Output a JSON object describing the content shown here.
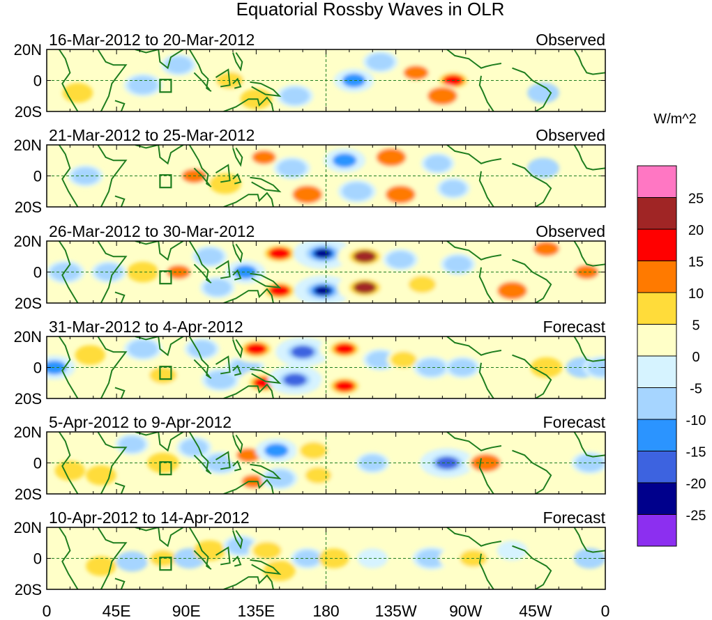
{
  "chart_data": {
    "type": "heatmap",
    "title": "Equatorial Rossby Waves in OLR",
    "units": "W/m^2",
    "x_ticks": [
      "0",
      "45E",
      "90E",
      "135E",
      "180",
      "135W",
      "90W",
      "45W",
      "0"
    ],
    "y_ticks": [
      "20N",
      "0",
      "20S"
    ],
    "x_range_deg": [
      0,
      360
    ],
    "y_range_deg": [
      -20,
      20
    ],
    "colorbar": {
      "labels": [
        "25",
        "20",
        "15",
        "10",
        "5",
        "0",
        "-5",
        "-10",
        "-15",
        "-20",
        "-25"
      ],
      "colors": [
        "#ff77c3",
        "#a02525",
        "#ff0000",
        "#ff7a00",
        "#ffdc3a",
        "#ffffc8",
        "#d6f3ff",
        "#a6d5ff",
        "#2b94ff",
        "#3d63e0",
        "#00008c",
        "#8c2ff0"
      ]
    },
    "panels": [
      {
        "period": "16-Mar-2012 to 20-Mar-2012",
        "label": "Observed",
        "blobs": [
          {
            "lon": 20,
            "lat": -8,
            "value": 5
          },
          {
            "lon": 45,
            "lat": 5,
            "value": 4
          },
          {
            "lon": 62,
            "lat": -3,
            "value": -10
          },
          {
            "lon": 85,
            "lat": 10,
            "value": -8
          },
          {
            "lon": 118,
            "lat": 0,
            "value": 8
          },
          {
            "lon": 135,
            "lat": -12,
            "value": 6
          },
          {
            "lon": 160,
            "lat": -10,
            "value": -9
          },
          {
            "lon": 198,
            "lat": 0,
            "value": -11
          },
          {
            "lon": 215,
            "lat": 12,
            "value": -8
          },
          {
            "lon": 238,
            "lat": 5,
            "value": 13
          },
          {
            "lon": 262,
            "lat": 0,
            "value": 17
          },
          {
            "lon": 255,
            "lat": -10,
            "value": 10
          },
          {
            "lon": 300,
            "lat": 5,
            "value": 4
          },
          {
            "lon": 320,
            "lat": -8,
            "value": -6
          },
          {
            "lon": 350,
            "lat": 3,
            "value": 4
          }
        ]
      },
      {
        "period": "21-Mar-2012 to 25-Mar-2012",
        "label": "Observed",
        "blobs": [
          {
            "lon": 25,
            "lat": 0,
            "value": -8
          },
          {
            "lon": 60,
            "lat": 8,
            "value": 4
          },
          {
            "lon": 95,
            "lat": 0,
            "value": 13
          },
          {
            "lon": 115,
            "lat": -5,
            "value": 6
          },
          {
            "lon": 140,
            "lat": 12,
            "value": 12
          },
          {
            "lon": 158,
            "lat": 5,
            "value": -9
          },
          {
            "lon": 168,
            "lat": -12,
            "value": 10
          },
          {
            "lon": 192,
            "lat": 10,
            "value": -12
          },
          {
            "lon": 200,
            "lat": -10,
            "value": -10
          },
          {
            "lon": 222,
            "lat": 12,
            "value": 10
          },
          {
            "lon": 228,
            "lat": -12,
            "value": 10
          },
          {
            "lon": 252,
            "lat": 8,
            "value": -7
          },
          {
            "lon": 262,
            "lat": -8,
            "value": -7
          },
          {
            "lon": 285,
            "lat": 0,
            "value": 4
          },
          {
            "lon": 320,
            "lat": 5,
            "value": -6
          },
          {
            "lon": 345,
            "lat": 0,
            "value": 4
          }
        ]
      },
      {
        "period": "26-Mar-2012 to 30-Mar-2012",
        "label": "Observed",
        "blobs": [
          {
            "lon": 12,
            "lat": 0,
            "value": -10
          },
          {
            "lon": 40,
            "lat": 0,
            "value": -8
          },
          {
            "lon": 62,
            "lat": 0,
            "value": 6
          },
          {
            "lon": 85,
            "lat": 0,
            "value": 12
          },
          {
            "lon": 105,
            "lat": 10,
            "value": -8
          },
          {
            "lon": 110,
            "lat": -10,
            "value": -8
          },
          {
            "lon": 128,
            "lat": 0,
            "value": -11
          },
          {
            "lon": 150,
            "lat": 12,
            "value": 19
          },
          {
            "lon": 150,
            "lat": -12,
            "value": 18
          },
          {
            "lon": 178,
            "lat": 12,
            "value": -23
          },
          {
            "lon": 178,
            "lat": -12,
            "value": -22
          },
          {
            "lon": 205,
            "lat": 10,
            "value": 20
          },
          {
            "lon": 205,
            "lat": -10,
            "value": 20
          },
          {
            "lon": 228,
            "lat": 8,
            "value": -8
          },
          {
            "lon": 242,
            "lat": -8,
            "value": 8
          },
          {
            "lon": 265,
            "lat": 5,
            "value": -8
          },
          {
            "lon": 300,
            "lat": -12,
            "value": 10
          },
          {
            "lon": 322,
            "lat": 15,
            "value": 14
          },
          {
            "lon": 348,
            "lat": 0,
            "value": 12
          }
        ]
      },
      {
        "period": "31-Mar-2012 to 4-Apr-2012",
        "label": "Forecast",
        "blobs": [
          {
            "lon": 5,
            "lat": 0,
            "value": -12
          },
          {
            "lon": 28,
            "lat": 8,
            "value": 5
          },
          {
            "lon": 62,
            "lat": 12,
            "value": -10
          },
          {
            "lon": 75,
            "lat": -5,
            "value": 8
          },
          {
            "lon": 100,
            "lat": 12,
            "value": -8
          },
          {
            "lon": 112,
            "lat": -8,
            "value": -10
          },
          {
            "lon": 128,
            "lat": 0,
            "value": -10
          },
          {
            "lon": 135,
            "lat": 12,
            "value": 18
          },
          {
            "lon": 140,
            "lat": -10,
            "value": 18
          },
          {
            "lon": 165,
            "lat": 10,
            "value": -20
          },
          {
            "lon": 160,
            "lat": -8,
            "value": -20
          },
          {
            "lon": 192,
            "lat": 12,
            "value": 17
          },
          {
            "lon": 192,
            "lat": -12,
            "value": 17
          },
          {
            "lon": 215,
            "lat": 5,
            "value": -8
          },
          {
            "lon": 230,
            "lat": 5,
            "value": 7
          },
          {
            "lon": 248,
            "lat": 0,
            "value": -9
          },
          {
            "lon": 268,
            "lat": 0,
            "value": -8
          },
          {
            "lon": 300,
            "lat": 0,
            "value": 4
          },
          {
            "lon": 322,
            "lat": 0,
            "value": 6
          },
          {
            "lon": 345,
            "lat": 0,
            "value": -6
          },
          {
            "lon": 358,
            "lat": 0,
            "value": -10
          }
        ]
      },
      {
        "period": "5-Apr-2012 to 9-Apr-2012",
        "label": "Forecast",
        "blobs": [
          {
            "lon": 15,
            "lat": -5,
            "value": 5
          },
          {
            "lon": 35,
            "lat": -8,
            "value": 5
          },
          {
            "lon": 55,
            "lat": 12,
            "value": -7
          },
          {
            "lon": 75,
            "lat": 0,
            "value": 6
          },
          {
            "lon": 95,
            "lat": 10,
            "value": -8
          },
          {
            "lon": 112,
            "lat": 0,
            "value": -10
          },
          {
            "lon": 130,
            "lat": 5,
            "value": 12
          },
          {
            "lon": 133,
            "lat": -12,
            "value": 11
          },
          {
            "lon": 148,
            "lat": 8,
            "value": -12
          },
          {
            "lon": 150,
            "lat": -10,
            "value": -9
          },
          {
            "lon": 172,
            "lat": 8,
            "value": 8
          },
          {
            "lon": 175,
            "lat": -8,
            "value": 7
          },
          {
            "lon": 210,
            "lat": 0,
            "value": -7
          },
          {
            "lon": 238,
            "lat": 0,
            "value": 4
          },
          {
            "lon": 258,
            "lat": 0,
            "value": -20
          },
          {
            "lon": 283,
            "lat": 0,
            "value": 10
          },
          {
            "lon": 300,
            "lat": -8,
            "value": 4
          },
          {
            "lon": 350,
            "lat": 0,
            "value": -9
          }
        ]
      },
      {
        "period": "10-Apr-2012 to 14-Apr-2012",
        "label": "Forecast",
        "blobs": [
          {
            "lon": 10,
            "lat": 5,
            "value": 4
          },
          {
            "lon": 35,
            "lat": -5,
            "value": 5
          },
          {
            "lon": 55,
            "lat": -2,
            "value": -6
          },
          {
            "lon": 75,
            "lat": 0,
            "value": 7
          },
          {
            "lon": 92,
            "lat": 0,
            "value": -6
          },
          {
            "lon": 105,
            "lat": 5,
            "value": 6
          },
          {
            "lon": 125,
            "lat": 8,
            "value": -8
          },
          {
            "lon": 142,
            "lat": 5,
            "value": 9
          },
          {
            "lon": 150,
            "lat": -8,
            "value": 6
          },
          {
            "lon": 168,
            "lat": 0,
            "value": -7
          },
          {
            "lon": 185,
            "lat": 0,
            "value": 5
          },
          {
            "lon": 210,
            "lat": 0,
            "value": -5
          },
          {
            "lon": 248,
            "lat": 0,
            "value": -10
          },
          {
            "lon": 262,
            "lat": 0,
            "value": 4
          },
          {
            "lon": 275,
            "lat": 0,
            "value": 8
          },
          {
            "lon": 300,
            "lat": 5,
            "value": -5
          },
          {
            "lon": 330,
            "lat": 0,
            "value": 4
          },
          {
            "lon": 350,
            "lat": 0,
            "value": -6
          }
        ]
      }
    ]
  }
}
